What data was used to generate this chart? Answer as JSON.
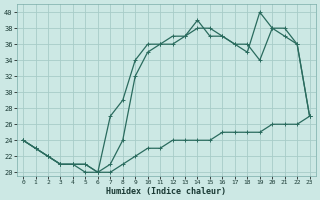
{
  "xlabel": "Humidex (Indice chaleur)",
  "bg_color": "#cce8e4",
  "grid_color": "#a8ccc8",
  "line_color": "#2a6b5e",
  "xlim": [
    -0.5,
    23.5
  ],
  "ylim": [
    19.5,
    41.0
  ],
  "xticks": [
    0,
    1,
    2,
    3,
    4,
    5,
    6,
    7,
    8,
    9,
    10,
    11,
    12,
    13,
    14,
    15,
    16,
    17,
    18,
    19,
    20,
    21,
    22,
    23
  ],
  "yticks": [
    20,
    22,
    24,
    26,
    28,
    30,
    32,
    34,
    36,
    38,
    40
  ],
  "line1_x": [
    0,
    1,
    2,
    3,
    4,
    5,
    6,
    7,
    8,
    9,
    10,
    11,
    12,
    13,
    14,
    15,
    16,
    17,
    18,
    19,
    20,
    21,
    22,
    23
  ],
  "line1_y": [
    24,
    23,
    22,
    21,
    21,
    21,
    20,
    20,
    21,
    22,
    23,
    23,
    24,
    24,
    24,
    24,
    25,
    25,
    25,
    25,
    26,
    26,
    26,
    27
  ],
  "line2_x": [
    0,
    1,
    2,
    3,
    4,
    5,
    6,
    7,
    8,
    9,
    10,
    11,
    12,
    13,
    14,
    15,
    16,
    17,
    18,
    19,
    20,
    21,
    22,
    23
  ],
  "line2_y": [
    24,
    23,
    22,
    21,
    21,
    21,
    20,
    27,
    29,
    34,
    36,
    36,
    37,
    37,
    39,
    37,
    37,
    36,
    36,
    34,
    38,
    38,
    36,
    27
  ],
  "line3_x": [
    0,
    1,
    2,
    3,
    4,
    5,
    6,
    7,
    8,
    9,
    10,
    11,
    12,
    13,
    14,
    15,
    16,
    17,
    18,
    19,
    20,
    21,
    22,
    23
  ],
  "line3_y": [
    24,
    23,
    22,
    21,
    21,
    20,
    20,
    21,
    24,
    32,
    35,
    36,
    36,
    37,
    38,
    38,
    37,
    36,
    35,
    40,
    38,
    37,
    36,
    27
  ]
}
